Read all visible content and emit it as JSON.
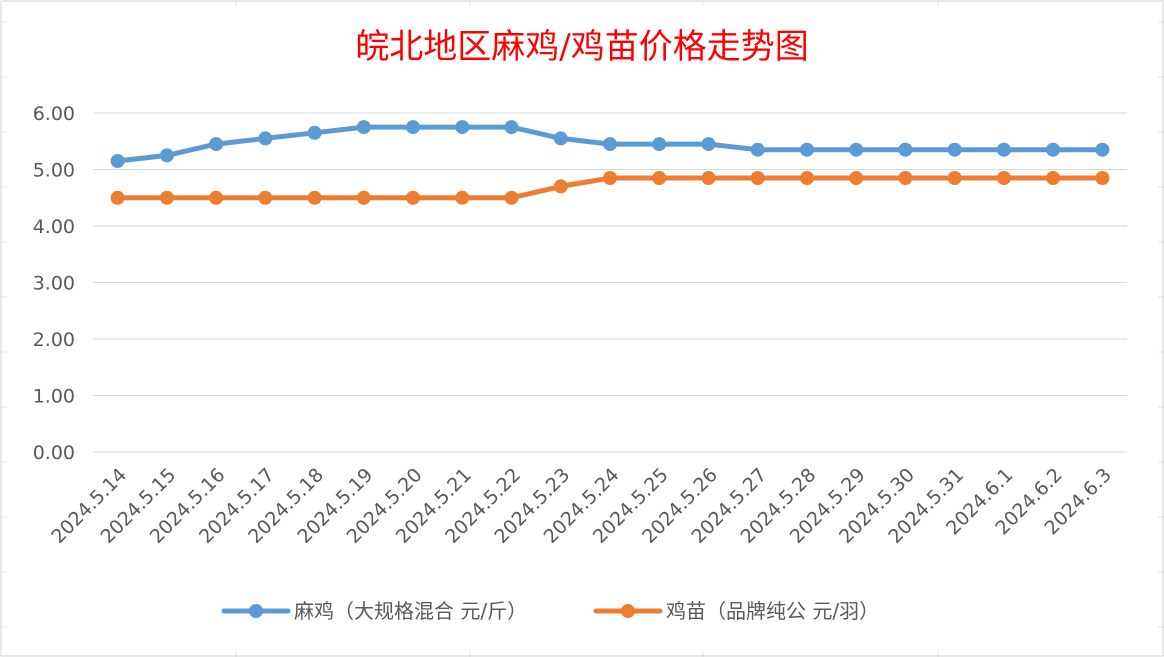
{
  "chart_data": {
    "type": "line",
    "title": "皖北地区麻鸡/鸡苗价格走势图",
    "xlabel": "",
    "ylabel": "",
    "categories": [
      "2024.5.14",
      "2024.5.15",
      "2024.5.16",
      "2024.5.17",
      "2024.5.18",
      "2024.5.19",
      "2024.5.20",
      "2024.5.21",
      "2024.5.22",
      "2024.5.23",
      "2024.5.24",
      "2024.5.25",
      "2024.5.26",
      "2024.5.27",
      "2024.5.28",
      "2024.5.29",
      "2024.5.30",
      "2024.5.31",
      "2024.6.1",
      "2024.6.2",
      "2024.6.3"
    ],
    "y_ticks": [
      "0.00",
      "1.00",
      "2.00",
      "3.00",
      "4.00",
      "5.00",
      "6.00"
    ],
    "ylim": [
      0,
      6
    ],
    "grid": true,
    "legend_position": "bottom",
    "series": [
      {
        "name": "麻鸡（大规格混合 元/斤）",
        "color": "#5b9bd5",
        "values": [
          5.15,
          5.25,
          5.45,
          5.55,
          5.65,
          5.75,
          5.75,
          5.75,
          5.75,
          5.55,
          5.45,
          5.45,
          5.45,
          5.35,
          5.35,
          5.35,
          5.35,
          5.35,
          5.35,
          5.35,
          5.35
        ]
      },
      {
        "name": "鸡苗（品牌纯公 元/羽）",
        "color": "#ed7d31",
        "values": [
          4.5,
          4.5,
          4.5,
          4.5,
          4.5,
          4.5,
          4.5,
          4.5,
          4.5,
          4.7,
          4.85,
          4.85,
          4.85,
          4.85,
          4.85,
          4.85,
          4.85,
          4.85,
          4.85,
          4.85,
          4.85
        ]
      }
    ]
  }
}
